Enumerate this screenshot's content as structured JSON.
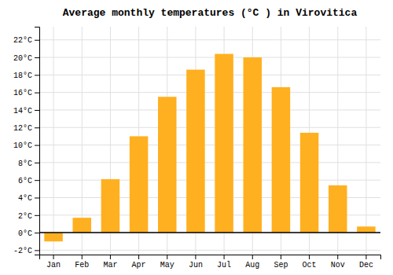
{
  "chart_data": {
    "type": "bar",
    "title": "Average monthly temperatures (°C ) in Virovitica",
    "categories": [
      "Jan",
      "Feb",
      "Mar",
      "Apr",
      "May",
      "Jun",
      "Jul",
      "Aug",
      "Sep",
      "Oct",
      "Nov",
      "Dec"
    ],
    "values": [
      -1.0,
      1.7,
      6.1,
      11.0,
      15.5,
      18.6,
      20.4,
      20.0,
      16.6,
      11.4,
      5.4,
      0.7
    ],
    "color": "#FFB020",
    "ylim": [
      -2.5,
      23.5
    ],
    "yticks": [
      {
        "value": -2,
        "label": "-2°C"
      },
      {
        "value": 0,
        "label": "0°C"
      },
      {
        "value": 2,
        "label": "2°C"
      },
      {
        "value": 4,
        "label": "4°C"
      },
      {
        "value": 6,
        "label": "6°C"
      },
      {
        "value": 8,
        "label": "8°C"
      },
      {
        "value": 10,
        "label": "10°C"
      },
      {
        "value": 12,
        "label": "12°C"
      },
      {
        "value": 14,
        "label": "14°C"
      },
      {
        "value": 16,
        "label": "16°C"
      },
      {
        "value": 18,
        "label": "18°C"
      },
      {
        "value": 20,
        "label": "20°C"
      },
      {
        "value": 22,
        "label": "22°C"
      }
    ],
    "grid": true
  }
}
